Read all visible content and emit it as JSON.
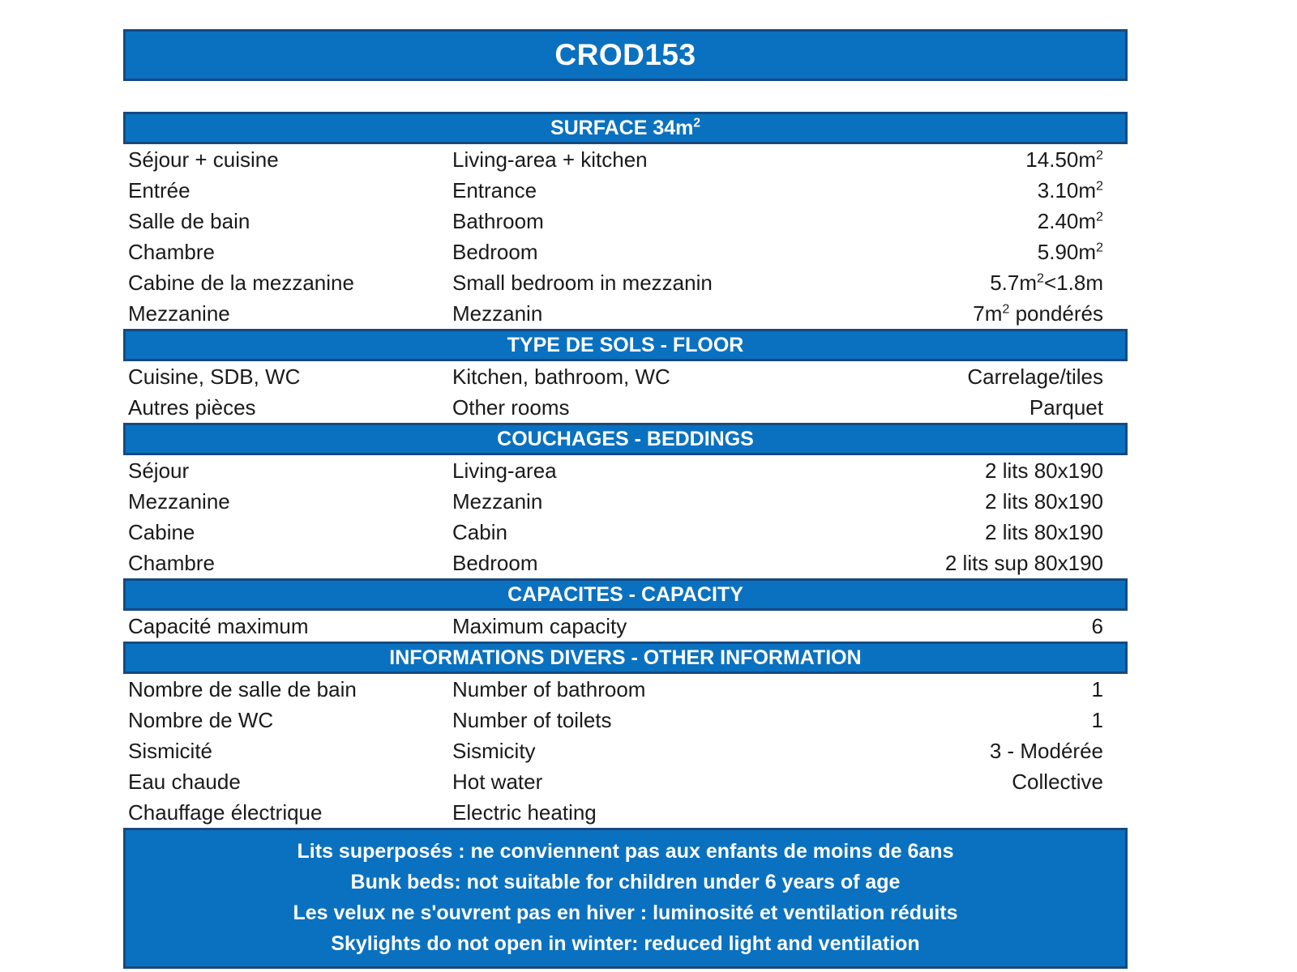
{
  "colors": {
    "banner_blue": "#0a71c0",
    "banner_border": "#17497f",
    "banner_text": "#ffffff",
    "body_text": "#1a1a1a"
  },
  "header": {
    "title": "CROD153"
  },
  "sections": [
    {
      "title": "SURFACE 34m²",
      "rows": [
        {
          "fr": "Séjour + cuisine",
          "en": "Living-area + kitchen",
          "value": "14.50m²"
        },
        {
          "fr": "Entrée",
          "en": "Entrance",
          "value": "3.10m²"
        },
        {
          "fr": "Salle de bain",
          "en": "Bathroom",
          "value": "2.40m²"
        },
        {
          "fr": "Chambre",
          "en": "Bedroom",
          "value": "5.90m²"
        },
        {
          "fr": "Cabine de la mezzanine",
          "en": "Small bedroom in mezzanin",
          "value": "5.7m²<1.8m"
        },
        {
          "fr": "Mezzanine",
          "en": "Mezzanin",
          "value": "7m² pondérés"
        }
      ]
    },
    {
      "title": "TYPE DE SOLS - FLOOR",
      "rows": [
        {
          "fr": "Cuisine, SDB, WC",
          "en": "Kitchen, bathroom, WC",
          "value": "Carrelage/tiles"
        },
        {
          "fr": "Autres pièces",
          "en": "Other rooms",
          "value": "Parquet"
        }
      ]
    },
    {
      "title": "COUCHAGES - BEDDINGS",
      "rows": [
        {
          "fr": "Séjour",
          "en": "Living-area",
          "value": "2 lits 80x190"
        },
        {
          "fr": "Mezzanine",
          "en": "Mezzanin",
          "value": "2 lits 80x190"
        },
        {
          "fr": "Cabine",
          "en": "Cabin",
          "value": "2 lits 80x190"
        },
        {
          "fr": "Chambre",
          "en": "Bedroom",
          "value": "2 lits sup 80x190"
        }
      ]
    },
    {
      "title": "CAPACITES - CAPACITY",
      "rows": [
        {
          "fr": "Capacité maximum",
          "en": "Maximum capacity",
          "value": "6"
        }
      ]
    },
    {
      "title": "INFORMATIONS DIVERS - OTHER INFORMATION",
      "rows": [
        {
          "fr": "Nombre de salle de bain",
          "en": "Number of bathroom",
          "value": "1"
        },
        {
          "fr": "Nombre de WC",
          "en": "Number of toilets",
          "value": "1"
        },
        {
          "fr": "Sismicité",
          "en": "Sismicity",
          "value": "3 - Modérée"
        },
        {
          "fr": "Eau chaude",
          "en": "Hot water",
          "value": "Collective"
        },
        {
          "fr": "Chauffage électrique",
          "en": "Electric heating",
          "value": ""
        }
      ]
    }
  ],
  "footer": {
    "notes": [
      "Lits superposés : ne conviennent pas aux enfants de moins de 6ans",
      "Bunk beds: not suitable for children under 6 years of age",
      "Les velux ne s'ouvrent pas en hiver : luminosité et ventilation réduits",
      "Skylights do not open in winter: reduced light and ventilation"
    ]
  }
}
